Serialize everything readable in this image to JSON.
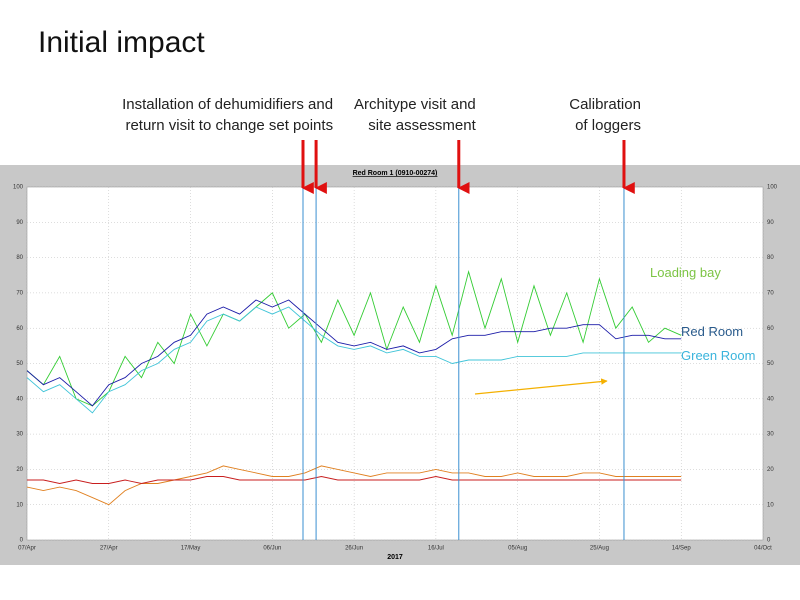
{
  "slide": {
    "title": "Initial impact"
  },
  "chart_data": {
    "type": "line",
    "title": "Red Room 1 (0910-00274)",
    "xlabel": "2017",
    "x": [
      0,
      4,
      8,
      12,
      16,
      20,
      24,
      28,
      32,
      36,
      40,
      44,
      48,
      52,
      56,
      60,
      64,
      68,
      72,
      76,
      80,
      84,
      88,
      92,
      96,
      100,
      104,
      108,
      112,
      116,
      120,
      124,
      128,
      132,
      136,
      140,
      144,
      148,
      152,
      156,
      160
    ],
    "xlim": [
      0,
      180
    ],
    "xticks": [
      {
        "value": 0,
        "label": "07/Apr"
      },
      {
        "value": 20,
        "label": "27/Apr"
      },
      {
        "value": 40,
        "label": "17/May"
      },
      {
        "value": 60,
        "label": "06/Jun"
      },
      {
        "value": 80,
        "label": "26/Jun"
      },
      {
        "value": 100,
        "label": "16/Jul"
      },
      {
        "value": 120,
        "label": "05/Aug"
      },
      {
        "value": 140,
        "label": "25/Aug"
      },
      {
        "value": 160,
        "label": "14/Sep"
      },
      {
        "value": 180,
        "label": "04/Oct"
      }
    ],
    "ylim": [
      0,
      100
    ],
    "yticks": [
      0,
      10,
      20,
      30,
      40,
      50,
      60,
      70,
      80,
      90,
      100
    ],
    "grid": true,
    "series": [
      {
        "name": "Loading bay",
        "color": "#33cc33",
        "values": [
          48,
          44,
          52,
          40,
          38,
          42,
          52,
          46,
          56,
          50,
          64,
          55,
          64,
          62,
          66,
          70,
          60,
          64,
          56,
          68,
          58,
          70,
          54,
          66,
          56,
          72,
          58,
          76,
          60,
          74,
          56,
          72,
          58,
          70,
          56,
          74,
          60,
          66,
          56,
          60,
          58
        ]
      },
      {
        "name": "Red Room",
        "color": "#1c1ca8",
        "values": [
          48,
          44,
          46,
          42,
          38,
          44,
          46,
          50,
          52,
          56,
          58,
          64,
          66,
          64,
          68,
          66,
          68,
          64,
          60,
          56,
          55,
          56,
          54,
          55,
          53,
          54,
          57,
          58,
          58,
          59,
          59,
          59,
          60,
          60,
          61,
          61,
          57,
          58,
          58,
          57,
          57
        ]
      },
      {
        "name": "Green Room",
        "color": "#40c4d8",
        "values": [
          46,
          42,
          44,
          40,
          36,
          42,
          44,
          48,
          50,
          54,
          56,
          62,
          64,
          62,
          66,
          64,
          66,
          62,
          58,
          55,
          54,
          55,
          53,
          54,
          52,
          52,
          50,
          51,
          51,
          51,
          52,
          52,
          52,
          52,
          53,
          53,
          53,
          53,
          53,
          53,
          53
        ]
      },
      {
        "color": "#e08020",
        "values": [
          15,
          14,
          15,
          14,
          12,
          10,
          14,
          16,
          16,
          17,
          18,
          19,
          21,
          20,
          19,
          18,
          18,
          19,
          21,
          20,
          19,
          18,
          19,
          19,
          19,
          20,
          19,
          19,
          18,
          18,
          19,
          18,
          18,
          18,
          19,
          19,
          18,
          18,
          18,
          18,
          18
        ]
      },
      {
        "color": "#c81e1e",
        "values": [
          17,
          17,
          16,
          17,
          16,
          16,
          17,
          16,
          17,
          17,
          17,
          18,
          18,
          17,
          17,
          17,
          17,
          17,
          18,
          17,
          17,
          17,
          17,
          17,
          17,
          18,
          17,
          17,
          17,
          17,
          17,
          17,
          17,
          17,
          17,
          17,
          17,
          17,
          17,
          17,
          17
        ]
      }
    ],
    "events": [
      {
        "lines": [
          "Installation of dehumidifiers and",
          "return visit to change set points"
        ],
        "x": [
          67.5,
          70.7
        ]
      },
      {
        "lines": [
          "Architype visit and",
          "site assessment"
        ],
        "x": [
          105.6
        ]
      },
      {
        "lines": [
          "Calibration",
          "of loggers"
        ],
        "x": [
          146
        ]
      }
    ]
  }
}
